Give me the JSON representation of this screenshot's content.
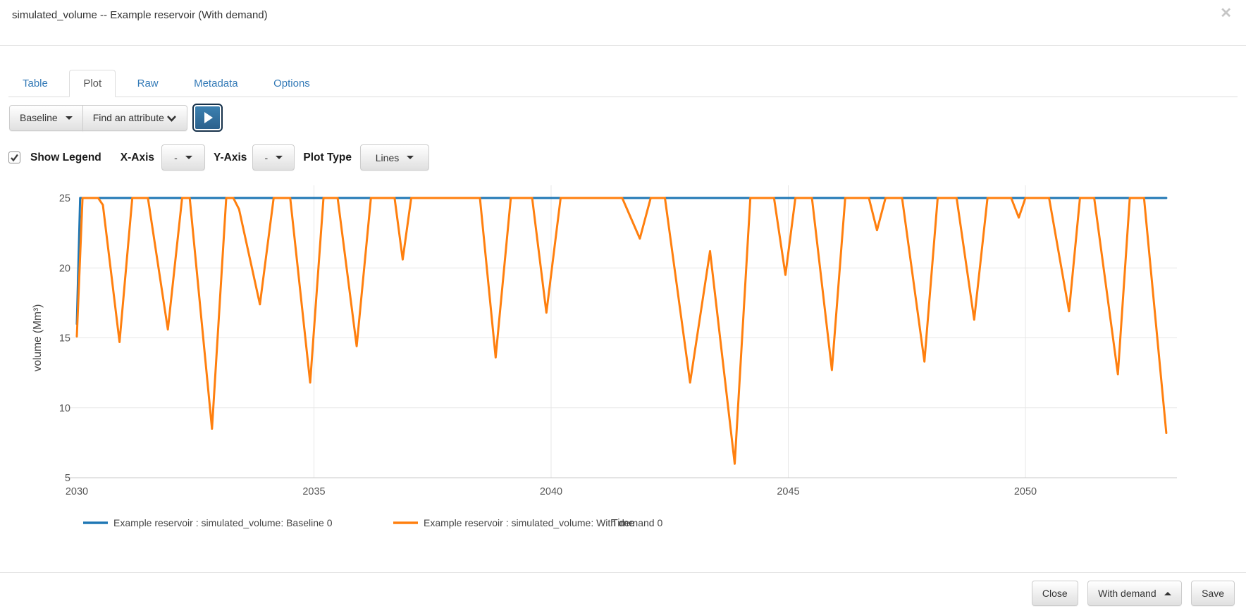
{
  "modal": {
    "title": "simulated_volume -- Example reservoir (With demand)",
    "close_icon": "✕"
  },
  "tabs": [
    {
      "label": "Table",
      "active": false
    },
    {
      "label": "Plot",
      "active": true
    },
    {
      "label": "Raw",
      "active": false
    },
    {
      "label": "Metadata",
      "active": false
    },
    {
      "label": "Options",
      "active": false
    }
  ],
  "toolbar": {
    "scenario_button": "Baseline",
    "attribute_button": "Find an attribute"
  },
  "plot_controls": {
    "show_legend_label": "Show Legend",
    "show_legend_checked": true,
    "x_axis_label": "X-Axis",
    "x_axis_value": "-",
    "y_axis_label": "Y-Axis",
    "y_axis_value": "-",
    "plot_type_label": "Plot Type",
    "plot_type_value": "Lines"
  },
  "chart_data": {
    "type": "line",
    "title": "",
    "xlabel": "Time",
    "ylabel": "volume (Mm³)",
    "xlim": [
      2030,
      2053
    ],
    "ylim": [
      5,
      25
    ],
    "x_ticks": [
      2030,
      2035,
      2040,
      2045,
      2050
    ],
    "y_ticks": [
      5,
      10,
      15,
      20,
      25
    ],
    "grid": true,
    "legend_position": "bottom",
    "series": [
      {
        "name": "Example reservoir : simulated_volume: Baseline 0",
        "color": "#1f77b4",
        "points": [
          [
            2030.0,
            16.0
          ],
          [
            2030.07,
            25
          ],
          [
            2052.97,
            25
          ]
        ]
      },
      {
        "name": "Example reservoir : simulated_volume: With demand 0",
        "color": "#ff7f0e",
        "points": [
          [
            2030.0,
            15.1
          ],
          [
            2030.12,
            25
          ],
          [
            2030.45,
            25
          ],
          [
            2030.55,
            24.5
          ],
          [
            2030.9,
            14.7
          ],
          [
            2031.17,
            25
          ],
          [
            2031.5,
            25
          ],
          [
            2031.92,
            15.6
          ],
          [
            2032.22,
            25
          ],
          [
            2032.38,
            25
          ],
          [
            2032.85,
            8.5
          ],
          [
            2033.15,
            25
          ],
          [
            2033.3,
            25
          ],
          [
            2033.42,
            24.2
          ],
          [
            2033.86,
            17.4
          ],
          [
            2034.15,
            25
          ],
          [
            2034.5,
            25
          ],
          [
            2034.92,
            11.8
          ],
          [
            2035.2,
            25
          ],
          [
            2035.5,
            25
          ],
          [
            2035.9,
            14.4
          ],
          [
            2036.2,
            25
          ],
          [
            2036.7,
            25
          ],
          [
            2036.87,
            20.6
          ],
          [
            2037.05,
            25
          ],
          [
            2038.5,
            25
          ],
          [
            2038.83,
            13.6
          ],
          [
            2039.15,
            25
          ],
          [
            2039.6,
            25
          ],
          [
            2039.9,
            16.8
          ],
          [
            2040.2,
            25
          ],
          [
            2041.5,
            25
          ],
          [
            2041.87,
            22.1
          ],
          [
            2042.1,
            25
          ],
          [
            2042.4,
            25
          ],
          [
            2042.93,
            11.8
          ],
          [
            2043.35,
            21.2
          ],
          [
            2043.87,
            6.0
          ],
          [
            2044.2,
            25
          ],
          [
            2044.7,
            25
          ],
          [
            2044.94,
            19.5
          ],
          [
            2045.15,
            25
          ],
          [
            2045.5,
            25
          ],
          [
            2045.92,
            12.7
          ],
          [
            2046.2,
            25
          ],
          [
            2046.7,
            25
          ],
          [
            2046.87,
            22.7
          ],
          [
            2047.05,
            25
          ],
          [
            2047.4,
            25
          ],
          [
            2047.87,
            13.3
          ],
          [
            2048.15,
            25
          ],
          [
            2048.55,
            25
          ],
          [
            2048.92,
            16.3
          ],
          [
            2049.2,
            25
          ],
          [
            2049.7,
            25
          ],
          [
            2049.86,
            23.6
          ],
          [
            2050.0,
            25
          ],
          [
            2050.5,
            25
          ],
          [
            2050.92,
            16.9
          ],
          [
            2051.15,
            25
          ],
          [
            2051.45,
            25
          ],
          [
            2051.95,
            12.4
          ],
          [
            2052.2,
            25
          ],
          [
            2052.5,
            25
          ],
          [
            2052.97,
            8.2
          ]
        ]
      }
    ]
  },
  "footer": {
    "close_label": "Close",
    "scenario_label": "With demand",
    "save_label": "Save"
  },
  "colors": {
    "tab_link": "#337ab7",
    "series_baseline": "#1f77b4",
    "series_with_demand": "#ff7f0e"
  }
}
